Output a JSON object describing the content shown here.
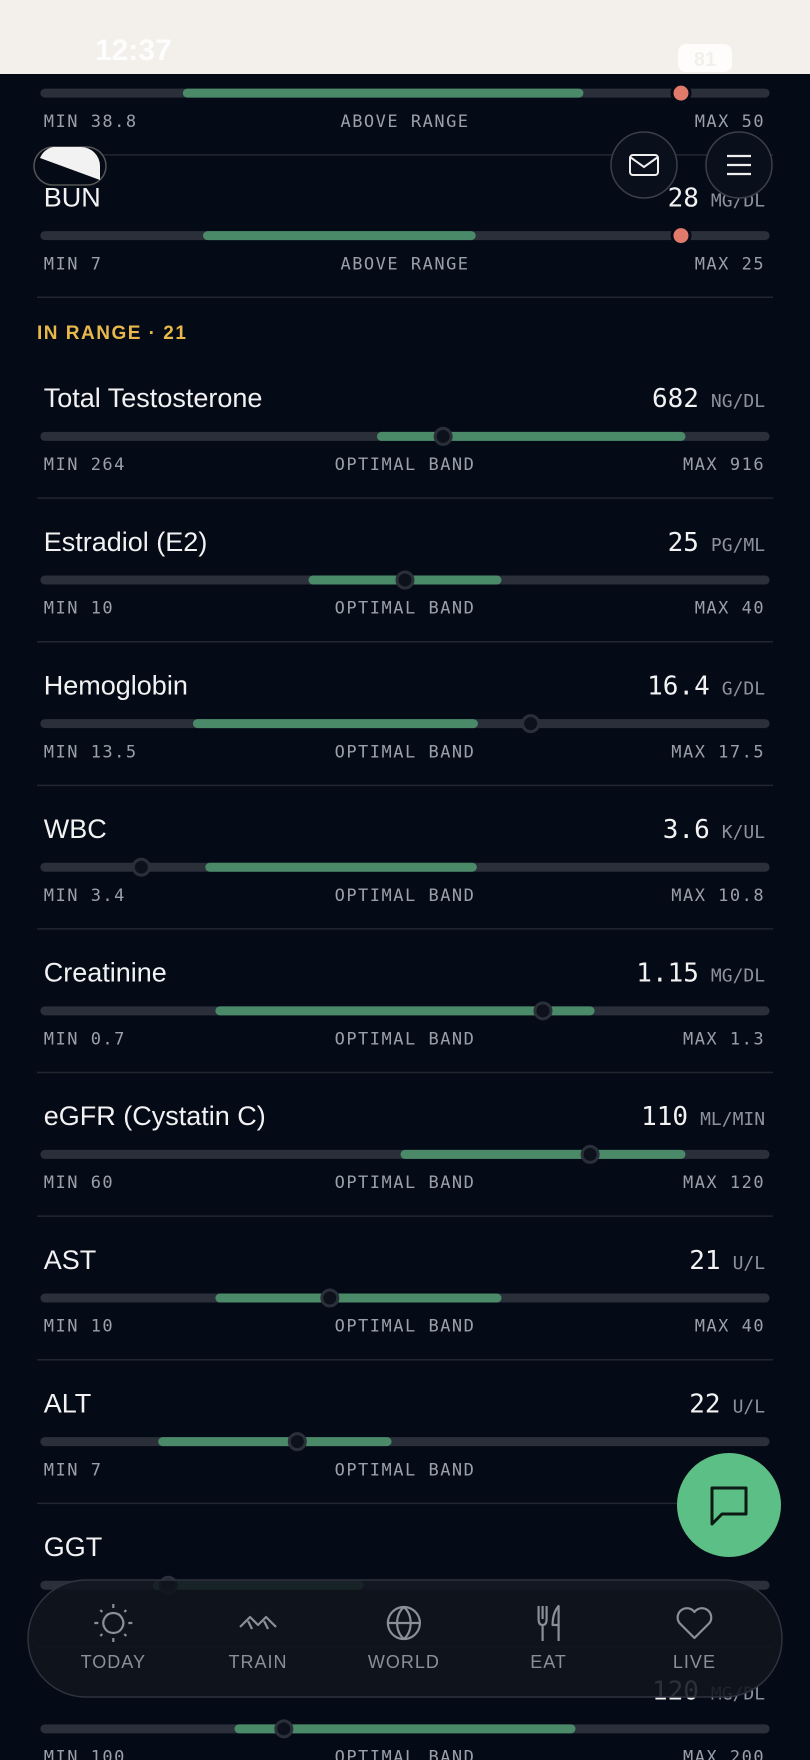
{
  "status_bar": {
    "time": "12:37",
    "battery": "81"
  },
  "section_header": "IN RANGE · 21",
  "rows": [
    {
      "min": "MIN 38.8",
      "status": "ABOVE RANGE",
      "max": "MAX 50"
    },
    {
      "name": "BUN",
      "value": "28",
      "unit": "MG/DL",
      "min": "MIN 7",
      "status": "ABOVE RANGE",
      "max": "MAX 25"
    },
    {
      "name": "Total Testosterone",
      "value": "682",
      "unit": "NG/DL",
      "min": "MIN 264",
      "status": "OPTIMAL BAND",
      "max": "MAX 916"
    },
    {
      "name": "Estradiol (E2)",
      "value": "25",
      "unit": "PG/ML",
      "min": "MIN 10",
      "status": "OPTIMAL BAND",
      "max": "MAX 40"
    },
    {
      "name": "Hemoglobin",
      "value": "16.4",
      "unit": "G/DL",
      "min": "MIN 13.5",
      "status": "OPTIMAL BAND",
      "max": "MAX 17.5"
    },
    {
      "name": "WBC",
      "value": "3.6",
      "unit": "K/UL",
      "min": "MIN 3.4",
      "status": "OPTIMAL BAND",
      "max": "MAX 10.8"
    },
    {
      "name": "Creatinine",
      "value": "1.15",
      "unit": "MG/DL",
      "min": "MIN 0.7",
      "status": "OPTIMAL BAND",
      "max": "MAX 1.3"
    },
    {
      "name": "eGFR (Cystatin C)",
      "value": "110",
      "unit": "ML/MIN",
      "min": "MIN 60",
      "status": "OPTIMAL BAND",
      "max": "MAX 120"
    },
    {
      "name": "AST",
      "value": "21",
      "unit": "U/L",
      "min": "MIN 10",
      "status": "OPTIMAL BAND",
      "max": "MAX 40"
    },
    {
      "name": "ALT",
      "value": "22",
      "unit": "U/L",
      "min": "MIN 7",
      "status": "OPTIMAL BAND"
    },
    {
      "name": "GGT"
    },
    {
      "value": "120",
      "unit": "MG/DL",
      "min": "MIN 100",
      "status": "OPTIMAL BAND",
      "max": "MAX 200"
    }
  ],
  "nav": [
    "TODAY",
    "TRAIN",
    "WORLD",
    "EAT",
    "LIVE"
  ]
}
